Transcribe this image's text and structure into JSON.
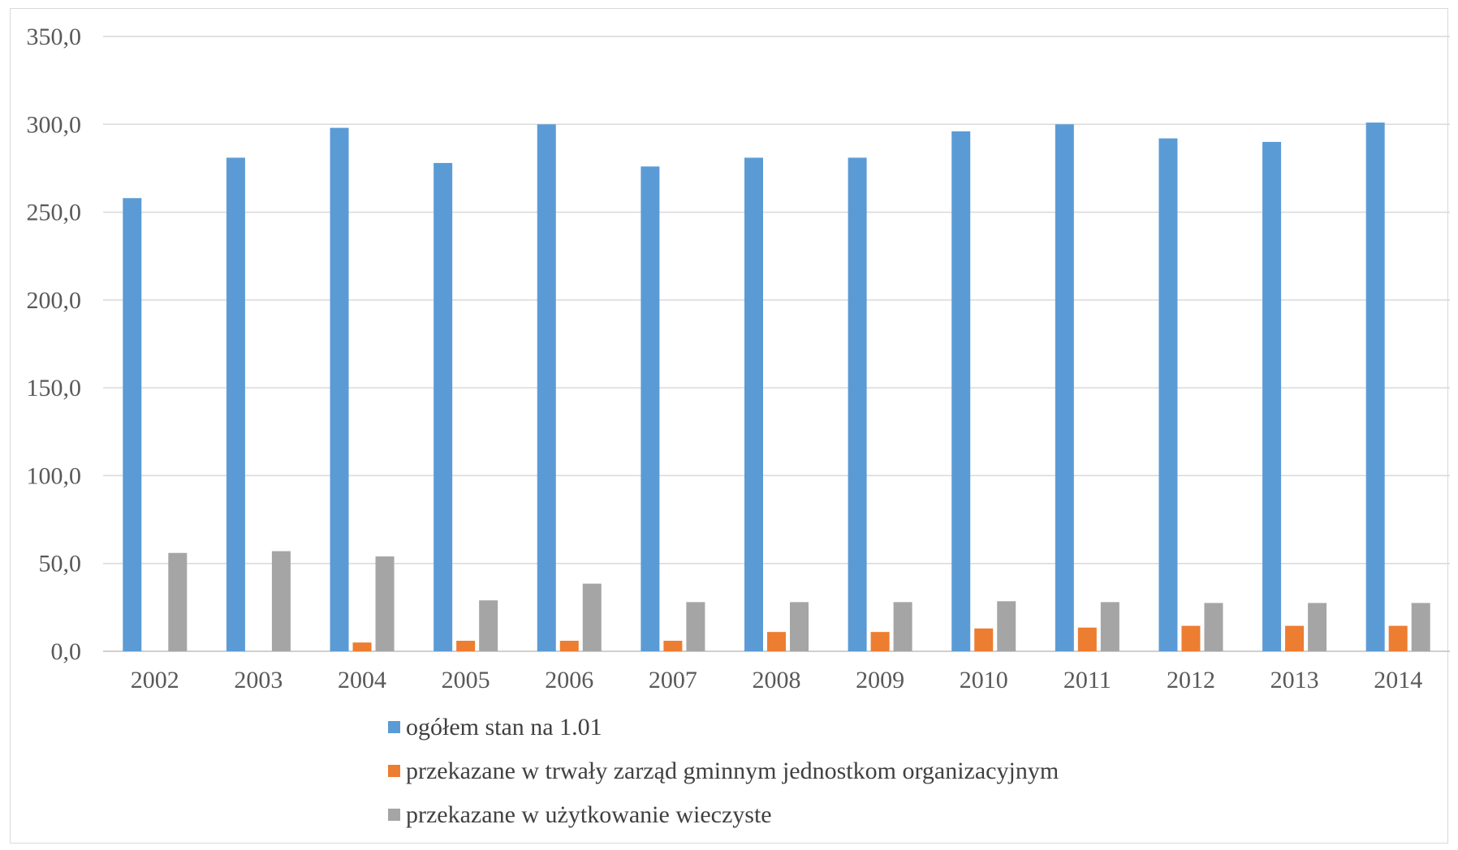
{
  "chart_data": {
    "type": "bar",
    "categories": [
      "2002",
      "2003",
      "2004",
      "2005",
      "2006",
      "2007",
      "2008",
      "2009",
      "2010",
      "2011",
      "2012",
      "2013",
      "2014"
    ],
    "series": [
      {
        "name": "ogółem stan na 1.01",
        "color": "#5b9bd5",
        "values": [
          258,
          281,
          298,
          278,
          300,
          276,
          281,
          281,
          296,
          300,
          292,
          290,
          301
        ]
      },
      {
        "name": "przekazane w trwały zarząd gminnym jednostkom organizacyjnym",
        "color": "#ed7d31",
        "values": [
          0,
          0,
          5,
          6,
          6,
          6,
          11,
          11,
          13,
          13.5,
          14.5,
          14.5,
          14.5
        ]
      },
      {
        "name": "przekazane w użytkowanie wieczyste",
        "color": "#a5a5a5",
        "values": [
          56,
          57,
          54,
          29,
          38.5,
          28,
          28,
          28,
          28.5,
          28,
          27.5,
          27.5,
          27.5
        ]
      }
    ],
    "ylim": [
      0,
      350
    ],
    "yticks": [
      "0,0",
      "50,0",
      "100,0",
      "150,0",
      "200,0",
      "250,0",
      "300,0",
      "350,0"
    ],
    "grid": true,
    "legend_position": "bottom"
  }
}
